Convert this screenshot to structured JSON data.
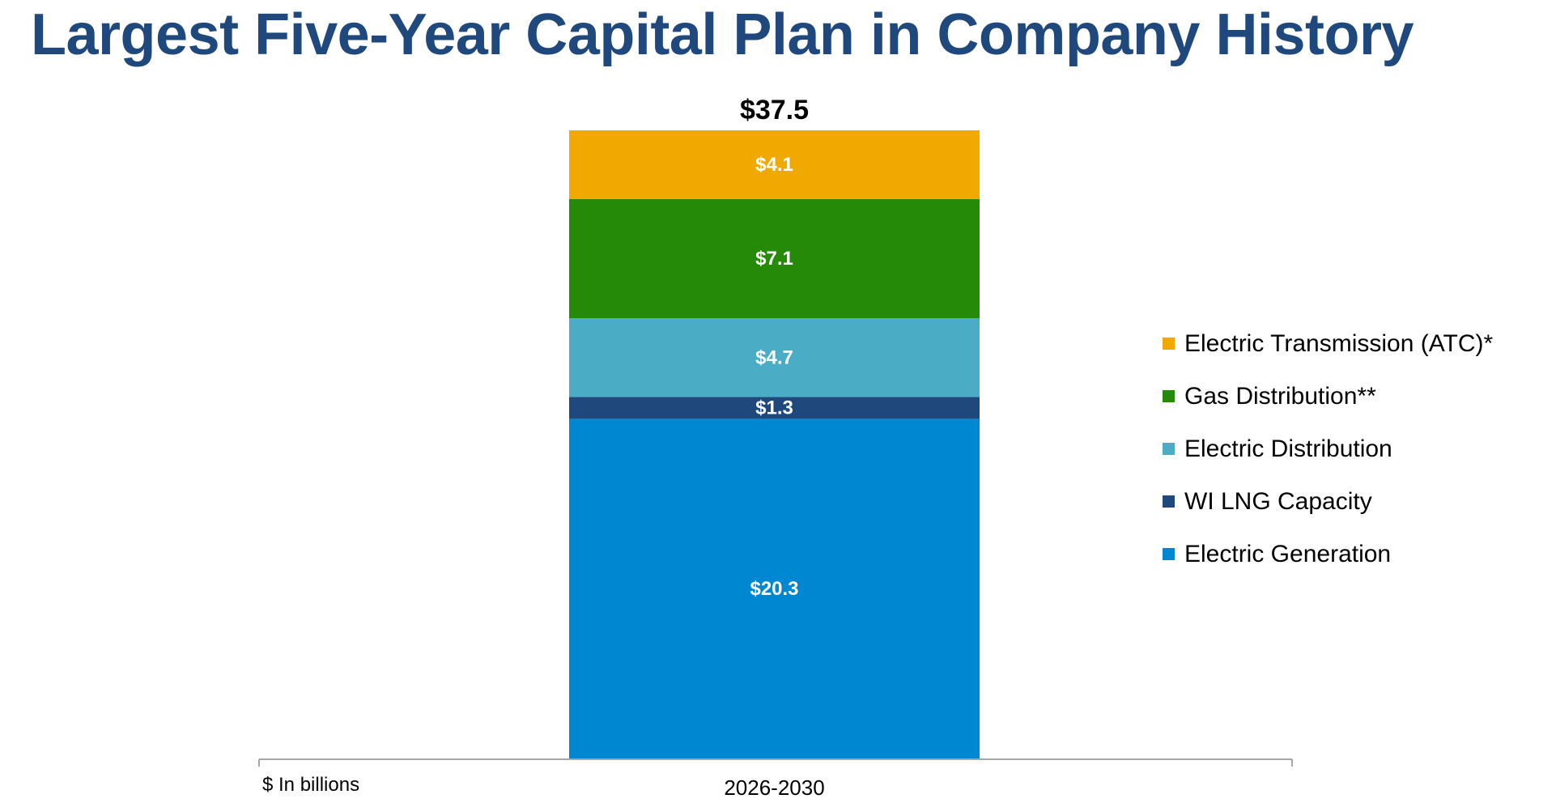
{
  "title": "Largest Five-Year Capital Plan in Company History",
  "chart_data": {
    "type": "bar",
    "stacked": true,
    "categories": [
      "2026-2030"
    ],
    "total_label": "$37.5",
    "total": 37.5,
    "unit_note": "$ In billions",
    "ylim": [
      0,
      37.5
    ],
    "grid": false,
    "legend_position": "right",
    "series": [
      {
        "name": "Electric Generation",
        "values": [
          20.3
        ],
        "label": "$20.3",
        "color": "#0087d1"
      },
      {
        "name": "WI LNG Capacity",
        "values": [
          1.3
        ],
        "label": "$1.3",
        "color": "#1f497d"
      },
      {
        "name": "Electric Distribution",
        "values": [
          4.7
        ],
        "label": "$4.7",
        "color": "#4bacc6"
      },
      {
        "name": "Gas Distribution**",
        "values": [
          7.1
        ],
        "label": "$7.1",
        "color": "#248a07"
      },
      {
        "name": "Electric Transmission (ATC)*",
        "values": [
          4.1
        ],
        "label": "$4.1",
        "color": "#f0a900"
      }
    ]
  }
}
